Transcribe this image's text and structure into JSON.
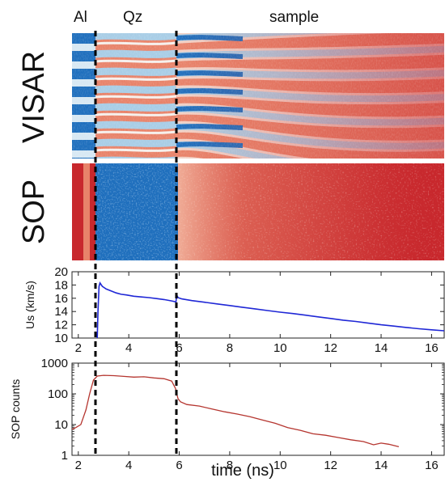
{
  "regions": {
    "al": "Al",
    "qz": "Qz",
    "sample": "sample"
  },
  "panel_labels": {
    "visar": "VISAR",
    "sop": "SOP"
  },
  "colors": {
    "deep_blue": "#1f6fbd",
    "light_blue": "#a8cde6",
    "pale": "#f3d9cf",
    "salmon": "#e8836a",
    "red": "#c8282d",
    "us_line": "#1f27d6",
    "sop_line": "#b5352f",
    "marker": "#000000"
  },
  "chart_data": [
    {
      "type": "line",
      "xlabel": "",
      "ylabel": "Us (km/s)",
      "xlim": [
        1.75,
        16.5
      ],
      "ylim": [
        10,
        20
      ],
      "xticks": [
        "2",
        "4",
        "6",
        "8",
        "10",
        "12",
        "14",
        "16"
      ],
      "yticks": [
        "10",
        "12",
        "14",
        "16",
        "18",
        "20"
      ],
      "series": [
        {
          "x": [
            2.75,
            2.78,
            2.82,
            2.86,
            2.95,
            3.1,
            3.3,
            3.5,
            3.7,
            3.9,
            4.2,
            4.5,
            4.8,
            5.1,
            5.4,
            5.7,
            5.87,
            5.9,
            5.95,
            6.1,
            6.5,
            7,
            7.5,
            8,
            8.5,
            9,
            9.5,
            10,
            10.5,
            11,
            11.5,
            12,
            12.5,
            13,
            13.5,
            14,
            14.5,
            15,
            15.5,
            16,
            16.5
          ],
          "y": [
            10,
            14,
            17.8,
            18.3,
            17.8,
            17.4,
            17.1,
            16.8,
            16.6,
            16.5,
            16.3,
            16.2,
            16.1,
            15.95,
            15.8,
            15.6,
            15.45,
            16.5,
            16.1,
            15.9,
            15.65,
            15.4,
            15.15,
            14.9,
            14.65,
            14.4,
            14.15,
            13.9,
            13.7,
            13.45,
            13.2,
            12.95,
            12.7,
            12.5,
            12.25,
            12.0,
            11.8,
            11.6,
            11.4,
            11.25,
            11.1
          ]
        }
      ]
    },
    {
      "type": "line",
      "xlabel": "time (ns)",
      "ylabel": "SOP counts",
      "yscale": "log",
      "xlim": [
        1.75,
        16.5
      ],
      "ylim": [
        1,
        1000
      ],
      "xticks": [
        "2",
        "4",
        "6",
        "8",
        "10",
        "12",
        "14",
        "16"
      ],
      "yticks": [
        "1",
        "10",
        "100",
        "1000"
      ],
      "series": [
        {
          "x": [
            1.75,
            1.9,
            2.1,
            2.3,
            2.45,
            2.6,
            2.75,
            3.0,
            3.4,
            3.8,
            4.2,
            4.6,
            5.0,
            5.4,
            5.7,
            5.85,
            5.95,
            6.05,
            6.3,
            6.8,
            7.3,
            7.8,
            8.3,
            8.8,
            9.3,
            9.8,
            10.3,
            10.8,
            11.3,
            11.8,
            12.3,
            12.8,
            13.3,
            13.7,
            14.0,
            14.3,
            14.7
          ],
          "y": [
            7,
            8,
            10,
            30,
            100,
            280,
            380,
            400,
            390,
            370,
            350,
            360,
            330,
            310,
            260,
            150,
            70,
            55,
            45,
            40,
            32,
            26,
            22,
            18,
            14,
            11,
            8,
            6.5,
            5,
            4.5,
            3.8,
            3.2,
            2.8,
            2.2,
            2.5,
            2.3,
            1.9
          ]
        }
      ]
    }
  ]
}
